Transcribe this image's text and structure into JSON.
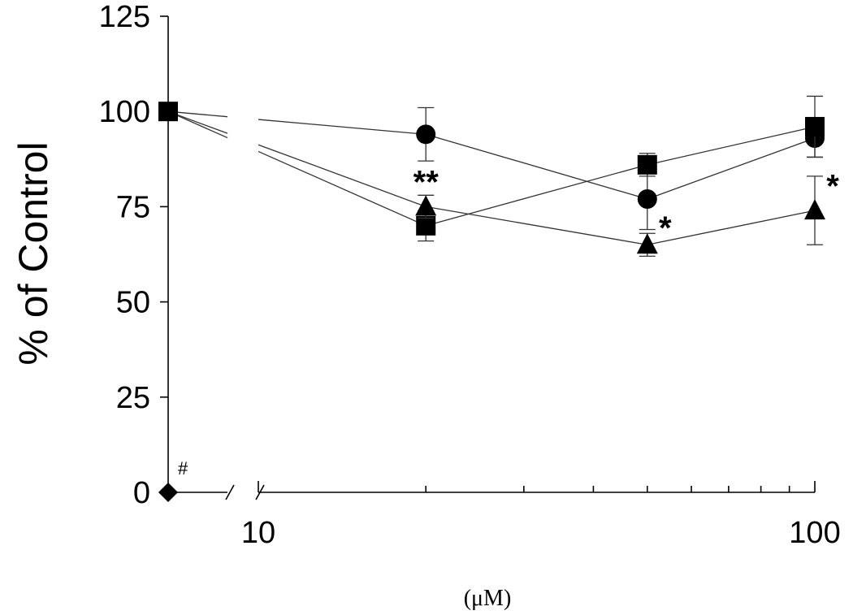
{
  "chart_data": {
    "type": "scatter",
    "xlabel": "(μM)",
    "ylabel": "% of Control",
    "x_scale": "log",
    "xlim": [
      10,
      100
    ],
    "ylim": [
      0,
      125
    ],
    "y_ticks": [
      "0",
      "25",
      "50",
      "75",
      "100",
      "125"
    ],
    "x_tick_labels": [
      "10",
      "100"
    ],
    "control": {
      "value": 100,
      "zero_marker": {
        "marker": "diamond",
        "value": 0,
        "annotation": "#"
      }
    },
    "series": [
      {
        "marker": "circle",
        "x": [
          20,
          50,
          100
        ],
        "y": [
          94,
          77,
          93
        ],
        "err": [
          7,
          8,
          5
        ]
      },
      {
        "marker": "square",
        "x": [
          20,
          50,
          100
        ],
        "y": [
          70,
          86,
          96
        ],
        "err": [
          4,
          3,
          8
        ]
      },
      {
        "marker": "triangle",
        "x": [
          20,
          50,
          100
        ],
        "y": [
          75,
          65,
          74
        ],
        "err": [
          3,
          3,
          9
        ]
      }
    ],
    "annotations": [
      {
        "x": 20,
        "y": 82,
        "text": "**"
      },
      {
        "x": 50,
        "y": 70,
        "text": "*"
      },
      {
        "x": 100,
        "y": 81,
        "text": "*"
      }
    ],
    "grid": false,
    "legend": "none"
  }
}
